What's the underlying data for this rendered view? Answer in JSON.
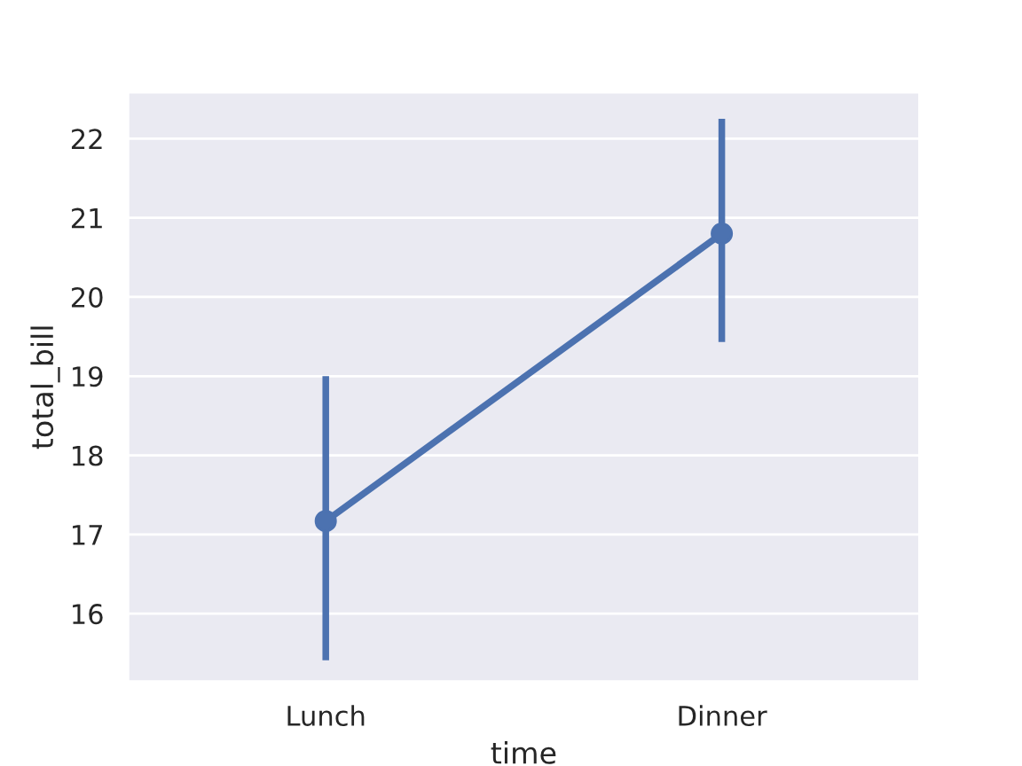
{
  "chart_data": {
    "type": "line",
    "xlabel": "time",
    "ylabel": "total_bill",
    "categories": [
      "Lunch",
      "Dinner"
    ],
    "series": [
      {
        "color": "#4c72b0",
        "values": [
          17.17,
          20.8
        ],
        "errors": [
          [
            15.41,
            19.0
          ],
          [
            19.43,
            22.25
          ]
        ]
      }
    ],
    "ylim": [
      15.14,
      22.59
    ],
    "yticks": [
      16,
      17,
      18,
      19,
      20,
      21,
      22
    ],
    "grid": "y",
    "marker": "circle",
    "line_style": "solid"
  }
}
